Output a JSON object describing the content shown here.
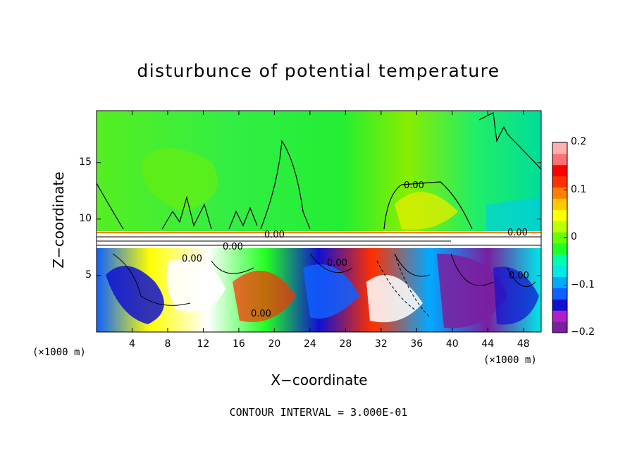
{
  "chart_data": {
    "type": "heatmap",
    "title": "disturbunce of potential temperature",
    "xlabel": "X−coordinate",
    "ylabel": "Z−coordinate",
    "x_unit": "(×1000 m)",
    "x_ticks": [
      "4",
      "8",
      "12",
      "16",
      "20",
      "24",
      "28",
      "32",
      "36",
      "40",
      "44",
      "48"
    ],
    "y_ticks": [
      "5",
      "10",
      "15"
    ],
    "xlim": [
      0,
      50
    ],
    "ylim": [
      0,
      19.6
    ],
    "colorbar": {
      "range": [
        -0.2,
        0.2
      ],
      "ticks": [
        "0.2",
        "0.1",
        "0",
        "−0.1",
        "−0.2"
      ],
      "colors": [
        "#7a1fa0",
        "#b020c8",
        "#1010d0",
        "#1060ff",
        "#00aaff",
        "#00e8e8",
        "#00ffaa",
        "#22ff22",
        "#66ff00",
        "#bbff00",
        "#ffff00",
        "#ffc800",
        "#ff8000",
        "#ff3000",
        "#ff0000",
        "#ff7070",
        "#ffb0b0"
      ]
    },
    "contour_labels": [
      "0.00",
      "0.00",
      "0.00",
      "0.00",
      "0.00",
      "0.00",
      "0.00",
      "0.00"
    ],
    "contour_interval_text": "CONTOUR INTERVAL = 3.000E-01"
  }
}
